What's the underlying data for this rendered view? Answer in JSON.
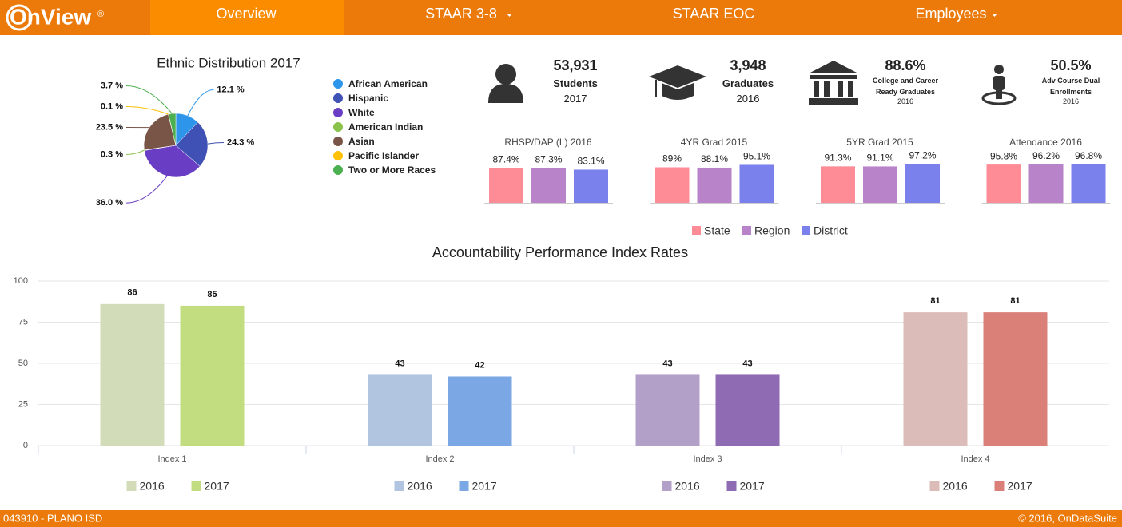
{
  "nav": {
    "logo": "OnView",
    "logo_mark": "®",
    "items": [
      "Overview",
      "STAAR 3-8",
      "STAAR EOC",
      "Employees"
    ]
  },
  "stats": [
    {
      "value": "53,931",
      "label": "Students",
      "sub": "2017"
    },
    {
      "value": "3,948",
      "label": "Graduates",
      "sub": "2016"
    },
    {
      "value": "88.6%",
      "label": "College and Career Ready Graduates",
      "sub": "2016"
    },
    {
      "value": "50.5%",
      "label": "Adv Course Dual Enrollments",
      "sub": "2016"
    }
  ],
  "chart_data": [
    {
      "type": "pie",
      "title": "Ethnic Distribution 2017",
      "categories": [
        "African American",
        "Hispanic",
        "White",
        "American Indian",
        "Asian",
        "Pacific Islander",
        "Two or More Races"
      ],
      "values": [
        12.1,
        24.3,
        36.0,
        0.3,
        23.5,
        0.1,
        3.7
      ],
      "value_labels": [
        "12.1 %",
        "24.3 %",
        "36.0 %",
        "0.3 %",
        "23.5 %",
        "0.1 %",
        "3.7 %"
      ],
      "colors": [
        "#2e96ea",
        "#3f51b5",
        "#6a3ec4",
        "#8bc34a",
        "#795548",
        "#ffc107",
        "#4caf50"
      ]
    },
    {
      "type": "mini-bar",
      "title": "RHSP/DAP (L) 2016",
      "series": [
        {
          "name": "State",
          "color": "#fe8c96",
          "values": [
            87.4
          ],
          "value_labels": [
            "87.4%"
          ]
        },
        {
          "name": "Region",
          "color": "#b883c8",
          "values": [
            87.3
          ],
          "value_labels": [
            "87.3%"
          ]
        },
        {
          "name": "District",
          "color": "#7a80ec",
          "values": [
            83.1
          ],
          "value_labels": [
            "83.1%"
          ]
        }
      ]
    },
    {
      "type": "mini-bar",
      "title": "4YR Grad 2015",
      "series": [
        {
          "name": "State",
          "color": "#fe8c96",
          "values": [
            89
          ],
          "value_labels": [
            "89%"
          ]
        },
        {
          "name": "Region",
          "color": "#b883c8",
          "values": [
            88.1
          ],
          "value_labels": [
            "88.1%"
          ]
        },
        {
          "name": "District",
          "color": "#7a80ec",
          "values": [
            95.1
          ],
          "value_labels": [
            "95.1%"
          ]
        }
      ]
    },
    {
      "type": "mini-bar",
      "title": "5YR Grad 2015",
      "series": [
        {
          "name": "State",
          "color": "#fe8c96",
          "values": [
            91.3
          ],
          "value_labels": [
            "91.3%"
          ]
        },
        {
          "name": "Region",
          "color": "#b883c8",
          "values": [
            91.1
          ],
          "value_labels": [
            "91.1%"
          ]
        },
        {
          "name": "District",
          "color": "#7a80ec",
          "values": [
            97.2
          ],
          "value_labels": [
            "97.2%"
          ]
        }
      ]
    },
    {
      "type": "mini-bar",
      "title": "Attendance 2016",
      "series": [
        {
          "name": "State",
          "color": "#fe8c96",
          "values": [
            95.8
          ],
          "value_labels": [
            "95.8%"
          ]
        },
        {
          "name": "Region",
          "color": "#b883c8",
          "values": [
            96.2
          ],
          "value_labels": [
            "96.2%"
          ]
        },
        {
          "name": "District",
          "color": "#7a80ec",
          "values": [
            96.8
          ],
          "value_labels": [
            "96.8%"
          ]
        }
      ]
    },
    {
      "type": "bar",
      "title": "Accountability Performance Index Rates",
      "categories": [
        "Index 1",
        "Index 2",
        "Index 3",
        "Index 4"
      ],
      "series": [
        {
          "name": "2016",
          "colors": [
            "#d2dcb8",
            "#b1c5e0",
            "#b3a0c8",
            "#dbbcb9"
          ],
          "values": [
            86,
            43,
            43,
            81
          ]
        },
        {
          "name": "2017",
          "colors": [
            "#c2dd80",
            "#7ba7e4",
            "#8f6bb3",
            "#da8079"
          ],
          "values": [
            85,
            42,
            43,
            81
          ]
        }
      ],
      "ylim": [
        0,
        100
      ],
      "yticks": [
        0,
        25,
        50,
        75,
        100
      ],
      "grid": true
    }
  ],
  "footer": {
    "left": "043910 - PLANO ISD",
    "right": "© 2016, OnDataSuite"
  }
}
